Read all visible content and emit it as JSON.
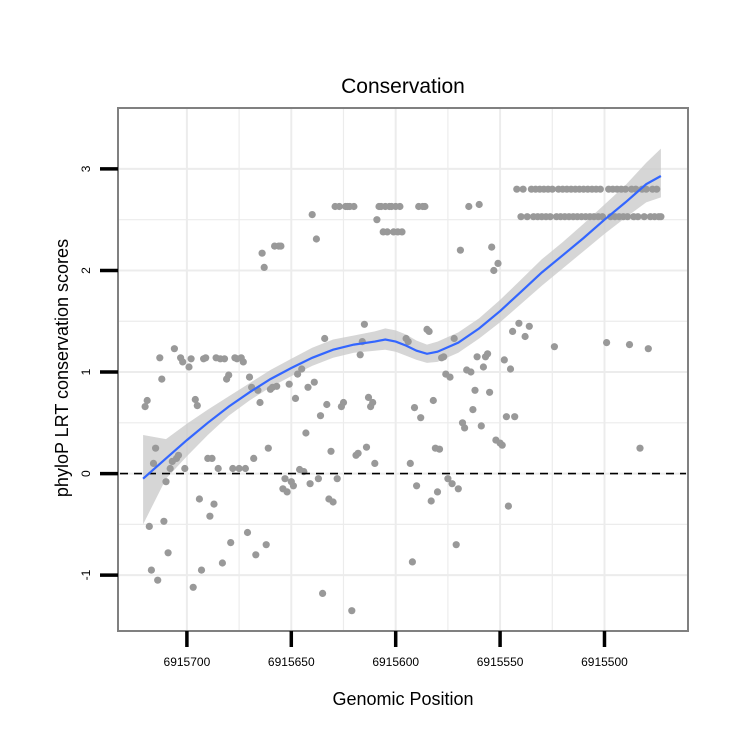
{
  "colors": {
    "panel_border": "#808080",
    "grid": "#ececec",
    "points": "#999999",
    "smooth_line": "#3366ff",
    "ribbon": "#cccccc",
    "reference_line": "#000000"
  },
  "chart_data": {
    "type": "scatter",
    "title": "Conservation",
    "xlabel": "Genomic Position",
    "ylabel": "phyloP LRT conservation scores",
    "x_reversed": true,
    "xlim": [
      6915733,
      6915460
    ],
    "ylim": [
      -1.55,
      3.6
    ],
    "grid": true,
    "x_ticks": [
      6915700,
      6915650,
      6915600,
      6915550,
      6915500
    ],
    "x_tick_labels": [
      "6915700",
      "6915650",
      "6915600",
      "6915550",
      "6915500"
    ],
    "y_ticks": [
      -1,
      0,
      1,
      2,
      3
    ],
    "y_tick_labels": [
      "-1",
      "0",
      "1",
      "2",
      "3"
    ],
    "reference_line": {
      "y": 0,
      "style": "dashed"
    },
    "points": [
      [
        6915720,
        0.66
      ],
      [
        6915719,
        0.72
      ],
      [
        6915718,
        -0.52
      ],
      [
        6915717,
        -0.95
      ],
      [
        6915716,
        0.1
      ],
      [
        6915715,
        0.25
      ],
      [
        6915714,
        -1.05
      ],
      [
        6915713,
        1.14
      ],
      [
        6915712,
        0.93
      ],
      [
        6915711,
        -0.47
      ],
      [
        6915710,
        -0.08
      ],
      [
        6915709,
        -0.78
      ],
      [
        6915708,
        0.05
      ],
      [
        6915707,
        0.12
      ],
      [
        6915706,
        1.23
      ],
      [
        6915705,
        0.15
      ],
      [
        6915704,
        0.18
      ],
      [
        6915703,
        1.14
      ],
      [
        6915702,
        1.1
      ],
      [
        6915701,
        0.05
      ],
      [
        6915699,
        1.05
      ],
      [
        6915698,
        1.13
      ],
      [
        6915697,
        -1.12
      ],
      [
        6915696,
        0.73
      ],
      [
        6915695,
        0.67
      ],
      [
        6915694,
        -0.25
      ],
      [
        6915693,
        -0.95
      ],
      [
        6915692,
        1.13
      ],
      [
        6915691,
        1.14
      ],
      [
        6915690,
        0.15
      ],
      [
        6915689,
        -0.42
      ],
      [
        6915688,
        0.15
      ],
      [
        6915687,
        -0.3
      ],
      [
        6915686,
        1.14
      ],
      [
        6915685,
        0.05
      ],
      [
        6915684,
        1.13
      ],
      [
        6915683,
        -0.88
      ],
      [
        6915682,
        1.13
      ],
      [
        6915681,
        0.93
      ],
      [
        6915680,
        0.97
      ],
      [
        6915679,
        -0.68
      ],
      [
        6915678,
        0.05
      ],
      [
        6915677,
        1.14
      ],
      [
        6915676,
        1.13
      ],
      [
        6915675,
        0.05
      ],
      [
        6915674,
        1.14
      ],
      [
        6915673,
        1.1
      ],
      [
        6915672,
        0.05
      ],
      [
        6915671,
        -0.58
      ],
      [
        6915670,
        0.95
      ],
      [
        6915669,
        0.85
      ],
      [
        6915668,
        0.15
      ],
      [
        6915667,
        -0.8
      ],
      [
        6915666,
        0.82
      ],
      [
        6915665,
        0.7
      ],
      [
        6915664,
        2.17
      ],
      [
        6915663,
        2.03
      ],
      [
        6915662,
        -0.7
      ],
      [
        6915661,
        0.25
      ],
      [
        6915660,
        0.83
      ],
      [
        6915659,
        0.85
      ],
      [
        6915658,
        2.24
      ],
      [
        6915657,
        0.86
      ],
      [
        6915656,
        2.24
      ],
      [
        6915655,
        2.24
      ],
      [
        6915654,
        -0.15
      ],
      [
        6915653,
        -0.05
      ],
      [
        6915652,
        -0.18
      ],
      [
        6915651,
        0.88
      ],
      [
        6915650,
        -0.08
      ],
      [
        6915649,
        -0.12
      ],
      [
        6915648,
        0.74
      ],
      [
        6915647,
        0.98
      ],
      [
        6915646,
        0.04
      ],
      [
        6915645,
        1.03
      ],
      [
        6915644,
        0.02
      ],
      [
        6915643,
        0.4
      ],
      [
        6915642,
        0.85
      ],
      [
        6915641,
        -0.1
      ],
      [
        6915640,
        2.55
      ],
      [
        6915639,
        0.9
      ],
      [
        6915638,
        2.31
      ],
      [
        6915637,
        -0.05
      ],
      [
        6915636,
        0.57
      ],
      [
        6915635,
        -1.18
      ],
      [
        6915634,
        1.33
      ],
      [
        6915633,
        0.68
      ],
      [
        6915632,
        -0.25
      ],
      [
        6915631,
        0.22
      ],
      [
        6915630,
        -0.28
      ],
      [
        6915629,
        2.63
      ],
      [
        6915628,
        -0.05
      ],
      [
        6915627,
        2.63
      ],
      [
        6915626,
        0.66
      ],
      [
        6915625,
        0.7
      ],
      [
        6915624,
        2.63
      ],
      [
        6915623,
        2.63
      ],
      [
        6915622,
        2.63
      ],
      [
        6915621,
        -1.35
      ],
      [
        6915620,
        2.63
      ],
      [
        6915619,
        0.18
      ],
      [
        6915618,
        0.2
      ],
      [
        6915617,
        1.17
      ],
      [
        6915616,
        1.3
      ],
      [
        6915615,
        1.47
      ],
      [
        6915614,
        0.26
      ],
      [
        6915613,
        0.75
      ],
      [
        6915612,
        0.66
      ],
      [
        6915611,
        0.7
      ],
      [
        6915610,
        0.1
      ],
      [
        6915609,
        2.5
      ],
      [
        6915608,
        2.63
      ],
      [
        6915607,
        2.63
      ],
      [
        6915606,
        2.38
      ],
      [
        6915605,
        2.63
      ],
      [
        6915604,
        2.38
      ],
      [
        6915603,
        2.63
      ],
      [
        6915602,
        2.63
      ],
      [
        6915601,
        2.38
      ],
      [
        6915600,
        2.63
      ],
      [
        6915599,
        2.38
      ],
      [
        6915598,
        2.63
      ],
      [
        6915597,
        2.38
      ],
      [
        6915595,
        1.33
      ],
      [
        6915594,
        1.3
      ],
      [
        6915593,
        0.1
      ],
      [
        6915592,
        -0.87
      ],
      [
        6915591,
        0.65
      ],
      [
        6915590,
        -0.12
      ],
      [
        6915589,
        2.63
      ],
      [
        6915588,
        0.55
      ],
      [
        6915587,
        2.63
      ],
      [
        6915586,
        2.63
      ],
      [
        6915585,
        1.42
      ],
      [
        6915584,
        1.4
      ],
      [
        6915583,
        -0.27
      ],
      [
        6915582,
        0.72
      ],
      [
        6915581,
        0.25
      ],
      [
        6915580,
        -0.18
      ],
      [
        6915579,
        0.24
      ],
      [
        6915578,
        1.14
      ],
      [
        6915577,
        1.15
      ],
      [
        6915576,
        0.98
      ],
      [
        6915575,
        -0.05
      ],
      [
        6915574,
        0.95
      ],
      [
        6915573,
        -0.1
      ],
      [
        6915572,
        1.33
      ],
      [
        6915571,
        -0.7
      ],
      [
        6915570,
        -0.15
      ],
      [
        6915569,
        2.2
      ],
      [
        6915568,
        0.5
      ],
      [
        6915567,
        0.45
      ],
      [
        6915566,
        1.02
      ],
      [
        6915565,
        2.63
      ],
      [
        6915564,
        1.0
      ],
      [
        6915563,
        0.63
      ],
      [
        6915562,
        0.82
      ],
      [
        6915561,
        1.15
      ],
      [
        6915560,
        2.65
      ],
      [
        6915559,
        0.47
      ],
      [
        6915558,
        1.05
      ],
      [
        6915557,
        1.15
      ],
      [
        6915556,
        1.18
      ],
      [
        6915555,
        0.8
      ],
      [
        6915554,
        2.23
      ],
      [
        6915553,
        2.0
      ],
      [
        6915552,
        0.33
      ],
      [
        6915551,
        2.07
      ],
      [
        6915550,
        0.3
      ],
      [
        6915549,
        0.28
      ],
      [
        6915548,
        1.12
      ],
      [
        6915547,
        0.56
      ],
      [
        6915546,
        -0.32
      ],
      [
        6915545,
        1.03
      ],
      [
        6915544,
        1.4
      ],
      [
        6915543,
        0.56
      ],
      [
        6915542,
        2.8
      ],
      [
        6915541,
        1.48
      ],
      [
        6915540,
        2.53
      ],
      [
        6915539,
        2.8
      ],
      [
        6915538,
        1.35
      ],
      [
        6915537,
        2.53
      ],
      [
        6915536,
        1.45
      ],
      [
        6915535,
        2.8
      ],
      [
        6915534,
        2.53
      ],
      [
        6915533,
        2.8
      ],
      [
        6915532,
        2.53
      ],
      [
        6915531,
        2.8
      ],
      [
        6915530,
        2.53
      ],
      [
        6915529,
        2.8
      ],
      [
        6915528,
        2.53
      ],
      [
        6915527,
        2.8
      ],
      [
        6915526,
        2.53
      ],
      [
        6915525,
        2.8
      ],
      [
        6915524,
        1.25
      ],
      [
        6915523,
        2.53
      ],
      [
        6915522,
        2.8
      ],
      [
        6915521,
        2.53
      ],
      [
        6915520,
        2.8
      ],
      [
        6915519,
        2.53
      ],
      [
        6915518,
        2.8
      ],
      [
        6915517,
        2.53
      ],
      [
        6915516,
        2.8
      ],
      [
        6915515,
        2.53
      ],
      [
        6915514,
        2.8
      ],
      [
        6915513,
        2.53
      ],
      [
        6915512,
        2.8
      ],
      [
        6915511,
        2.53
      ],
      [
        6915510,
        2.8
      ],
      [
        6915509,
        2.53
      ],
      [
        6915508,
        2.8
      ],
      [
        6915507,
        2.53
      ],
      [
        6915506,
        2.8
      ],
      [
        6915505,
        2.53
      ],
      [
        6915504,
        2.8
      ],
      [
        6915503,
        2.53
      ],
      [
        6915502,
        2.8
      ],
      [
        6915501,
        2.53
      ],
      [
        6915499,
        1.29
      ],
      [
        6915498,
        2.8
      ],
      [
        6915497,
        2.53
      ],
      [
        6915496,
        2.8
      ],
      [
        6915495,
        2.53
      ],
      [
        6915494,
        2.8
      ],
      [
        6915493,
        2.53
      ],
      [
        6915492,
        2.8
      ],
      [
        6915491,
        2.53
      ],
      [
        6915490,
        2.8
      ],
      [
        6915489,
        2.53
      ],
      [
        6915488,
        1.27
      ],
      [
        6915487,
        2.8
      ],
      [
        6915486,
        2.53
      ],
      [
        6915485,
        2.8
      ],
      [
        6915484,
        2.53
      ],
      [
        6915483,
        0.25
      ],
      [
        6915482,
        2.8
      ],
      [
        6915481,
        2.53
      ],
      [
        6915480,
        2.8
      ],
      [
        6915479,
        1.23
      ],
      [
        6915478,
        2.53
      ],
      [
        6915477,
        2.8
      ],
      [
        6915476,
        2.53
      ],
      [
        6915475,
        2.8
      ],
      [
        6915474,
        2.53
      ],
      [
        6915473,
        2.53
      ]
    ],
    "smooth_line": {
      "x": [
        6915721,
        6915710,
        6915700,
        6915690,
        6915680,
        6915670,
        6915660,
        6915650,
        6915640,
        6915630,
        6915620,
        6915610,
        6915605,
        6915600,
        6915595,
        6915590,
        6915585,
        6915580,
        6915570,
        6915560,
        6915550,
        6915540,
        6915530,
        6915520,
        6915510,
        6915500,
        6915490,
        6915480,
        6915473
      ],
      "y": [
        -0.05,
        0.15,
        0.33,
        0.5,
        0.66,
        0.8,
        0.93,
        1.04,
        1.14,
        1.22,
        1.27,
        1.3,
        1.32,
        1.3,
        1.26,
        1.21,
        1.18,
        1.2,
        1.29,
        1.43,
        1.6,
        1.79,
        1.98,
        2.15,
        2.32,
        2.5,
        2.67,
        2.85,
        2.93
      ],
      "ribbon_low": [
        -0.5,
        -0.05,
        0.17,
        0.38,
        0.57,
        0.72,
        0.85,
        0.96,
        1.06,
        1.14,
        1.19,
        1.21,
        1.22,
        1.2,
        1.16,
        1.12,
        1.09,
        1.1,
        1.19,
        1.33,
        1.49,
        1.67,
        1.85,
        2.02,
        2.19,
        2.36,
        2.52,
        2.67,
        2.72
      ],
      "ribbon_high": [
        0.38,
        0.34,
        0.49,
        0.63,
        0.76,
        0.89,
        1.02,
        1.13,
        1.24,
        1.32,
        1.36,
        1.4,
        1.43,
        1.41,
        1.37,
        1.31,
        1.27,
        1.3,
        1.39,
        1.53,
        1.71,
        1.91,
        2.11,
        2.28,
        2.46,
        2.65,
        2.84,
        3.06,
        3.2
      ]
    }
  }
}
